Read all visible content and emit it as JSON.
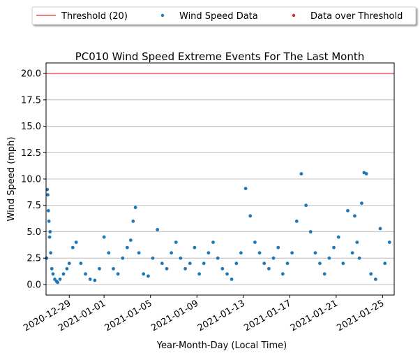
{
  "chart_data": {
    "type": "scatter",
    "title": "PC010 Wind Speed Extreme Events For The Last Month",
    "xlabel": "Year-Month-Day (Local Time)",
    "ylabel": "Wind Speed (mph)",
    "xlim": [
      "2020-12-27",
      "2021-01-26"
    ],
    "ylim": [
      -1,
      21
    ],
    "grid": "y-axis",
    "legend_position": "top-center",
    "x_tick_labels": [
      "2020-12-29",
      "2021-01-01",
      "2021-01-05",
      "2021-01-09",
      "2021-01-13",
      "2021-01-17",
      "2021-01-21",
      "2021-01-25"
    ],
    "y_tick_labels": [
      "0.0",
      "2.5",
      "5.0",
      "7.5",
      "10.0",
      "12.5",
      "15.0",
      "17.5",
      "20.0"
    ],
    "threshold": {
      "label": "Threshold (20)",
      "value": 20,
      "color": "#f08080"
    },
    "series": [
      {
        "name": "Wind Speed Data",
        "color": "#1f77b4",
        "x_day_offsets": [
          0.05,
          0.1,
          0.15,
          0.2,
          0.25,
          0.3,
          0.35,
          0.4,
          0.5,
          0.6,
          0.75,
          0.9,
          1.0,
          1.2,
          1.5,
          1.8,
          2.0,
          2.3,
          2.6,
          3.0,
          3.4,
          3.8,
          4.2,
          4.6,
          5.0,
          5.4,
          5.8,
          6.2,
          6.6,
          7.0,
          7.3,
          7.5,
          7.7,
          8.0,
          8.4,
          8.8,
          9.2,
          9.6,
          10.0,
          10.4,
          10.8,
          11.2,
          11.6,
          12.0,
          12.4,
          12.8,
          13.2,
          13.6,
          14.0,
          14.4,
          14.8,
          15.2,
          15.6,
          16.0,
          16.4,
          16.8,
          17.2,
          17.6,
          18.0,
          18.4,
          18.8,
          19.2,
          19.6,
          20.0,
          20.4,
          20.8,
          21.2,
          21.6,
          22.0,
          22.4,
          22.8,
          23.2,
          23.6,
          24.0,
          24.4,
          24.8,
          25.2,
          25.6,
          26.0,
          26.4,
          26.6,
          26.8,
          27.0,
          27.2,
          27.4,
          27.6,
          28.0,
          28.4,
          28.8,
          29.2,
          29.6
        ],
        "values": [
          2.5,
          9.0,
          8.5,
          7.0,
          6.0,
          4.5,
          5.0,
          3.0,
          1.5,
          1.0,
          0.5,
          0.3,
          0.2,
          0.5,
          1.0,
          1.5,
          2.0,
          3.5,
          4.0,
          2.0,
          1.0,
          0.5,
          0.4,
          1.5,
          4.5,
          3.0,
          1.5,
          1.0,
          2.5,
          3.5,
          4.2,
          6.0,
          7.3,
          3.0,
          1.0,
          0.8,
          2.5,
          5.2,
          2.0,
          1.5,
          3.0,
          4.0,
          2.5,
          1.5,
          2.0,
          3.5,
          1.0,
          2.0,
          3.0,
          4.0,
          2.5,
          1.5,
          1.0,
          0.5,
          2.0,
          3.0,
          9.1,
          6.5,
          4.0,
          3.0,
          2.0,
          1.5,
          2.5,
          3.5,
          1.0,
          2.0,
          3.0,
          6.0,
          10.5,
          7.5,
          5.0,
          3.0,
          2.0,
          1.0,
          2.5,
          3.5,
          4.5,
          2.0,
          7.0,
          3.0,
          6.5,
          4.0,
          2.5,
          7.7,
          10.6,
          10.5,
          1.0,
          0.5,
          5.3,
          2.0,
          4.0
        ]
      },
      {
        "name": "Data over Threshold",
        "color": "#d62728",
        "x_day_offsets": [],
        "values": []
      }
    ]
  }
}
